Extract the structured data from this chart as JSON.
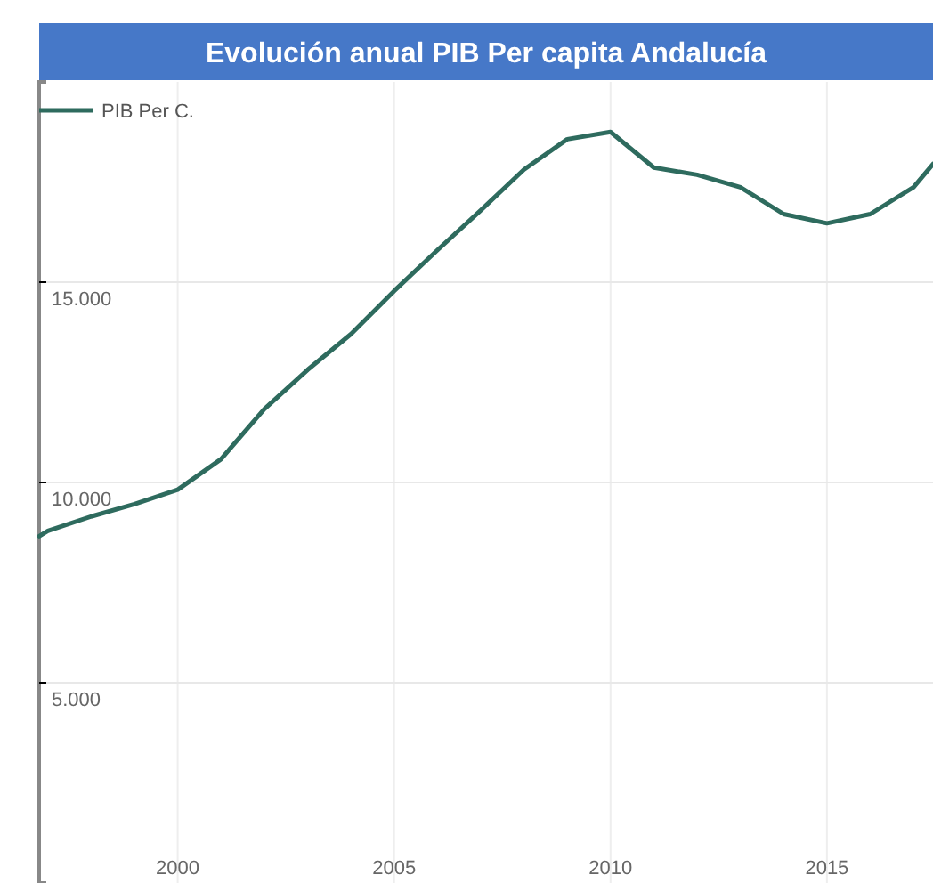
{
  "chart_data": {
    "type": "line",
    "title": "Evolución anual PIB Per capita Andalucía",
    "x": [
      1996.8,
      1997,
      1998,
      1999,
      2000,
      2001,
      2002,
      2003,
      2004,
      2005,
      2006,
      2007,
      2008,
      2009,
      2010,
      2011,
      2012,
      2013,
      2014,
      2015,
      2016,
      2017,
      2017.45
    ],
    "series": [
      {
        "name": "PIB Per C.",
        "color": "#2e6b5e",
        "values": [
          8660,
          8790,
          9150,
          9460,
          9820,
          10580,
          11830,
          12810,
          13700,
          14780,
          15800,
          16790,
          17810,
          18570,
          18750,
          17860,
          17680,
          17370,
          16700,
          16470,
          16700,
          17370,
          17950
        ]
      }
    ],
    "xlim": [
      1996.8,
      2017.45
    ],
    "xticks": [
      2000,
      2005,
      2010,
      2015
    ],
    "ylim": [
      0,
      20000
    ],
    "yticks": [
      {
        "value": 5000,
        "label": "5.000"
      },
      {
        "value": 10000,
        "label": "10.000"
      },
      {
        "value": 15000,
        "label": "15.000"
      }
    ],
    "grid": true,
    "legend": "top left",
    "marker": "none",
    "line_style": "solid"
  }
}
